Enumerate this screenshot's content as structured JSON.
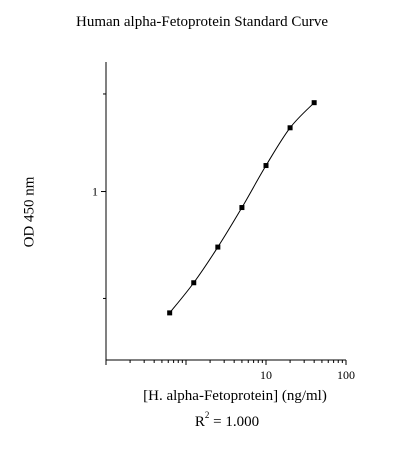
{
  "chart_data": {
    "type": "line",
    "title": "Human alpha-Fetoprotein Standard Curve",
    "xlabel": "[H. alpha-Fetoprotein] (ng/ml)",
    "ylabel": "OD 450 nm",
    "annotation": {
      "prefix": "R",
      "sup": "2",
      "suffix": " = 1.000"
    },
    "x_scale": "log",
    "y_scale": "log",
    "xlim": [
      0.1,
      100
    ],
    "ylim": [
      0.15,
      4.3
    ],
    "x_ticks": [
      {
        "value": 10,
        "label": "10"
      },
      {
        "value": 100,
        "label": "100"
      }
    ],
    "y_ticks": [
      {
        "value": 1,
        "label": "1"
      }
    ],
    "grid": false,
    "legend": "none",
    "series": [
      {
        "x": [
          0.625,
          1.25,
          2.5,
          5,
          10,
          20,
          40
        ],
        "y": [
          0.255,
          0.358,
          0.535,
          0.835,
          1.34,
          2.05,
          2.72
        ]
      }
    ]
  }
}
